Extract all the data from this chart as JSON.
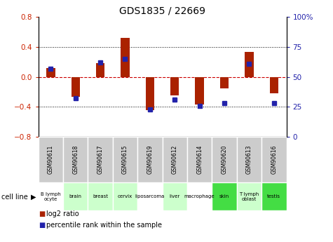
{
  "title": "GDS1835 / 22669",
  "samples": [
    "GSM90611",
    "GSM90618",
    "GSM90617",
    "GSM90615",
    "GSM90619",
    "GSM90612",
    "GSM90614",
    "GSM90620",
    "GSM90613",
    "GSM90616"
  ],
  "cell_lines": [
    "B lymph\nocyte",
    "brain",
    "breast",
    "cervix",
    "liposarcoma",
    "liver",
    "macrophage",
    "skin",
    "T lymph\noblast",
    "testis"
  ],
  "cell_line_colors": [
    "#ffffff",
    "#ccffcc",
    "#ccffcc",
    "#ccffcc",
    "#ffffff",
    "#ccffcc",
    "#ffffff",
    "#44dd44",
    "#ccffcc",
    "#44dd44"
  ],
  "log2_ratio": [
    0.12,
    -0.27,
    0.18,
    0.52,
    -0.44,
    -0.25,
    -0.37,
    -0.15,
    0.33,
    -0.22
  ],
  "percentile_rank": [
    57,
    32,
    62,
    65,
    23,
    31,
    26,
    28,
    61,
    28
  ],
  "ylim_left": [
    -0.8,
    0.8
  ],
  "ylim_right": [
    0,
    100
  ],
  "left_ticks": [
    -0.8,
    -0.4,
    0.0,
    0.4,
    0.8
  ],
  "right_ticks": [
    0,
    25,
    50,
    75,
    100
  ],
  "bar_color_red": "#aa2200",
  "bar_color_blue": "#2222aa",
  "zero_line_color": "#cc0000",
  "plot_bg": "#ffffff",
  "sample_box_color": "#cccccc",
  "bar_width": 0.35
}
